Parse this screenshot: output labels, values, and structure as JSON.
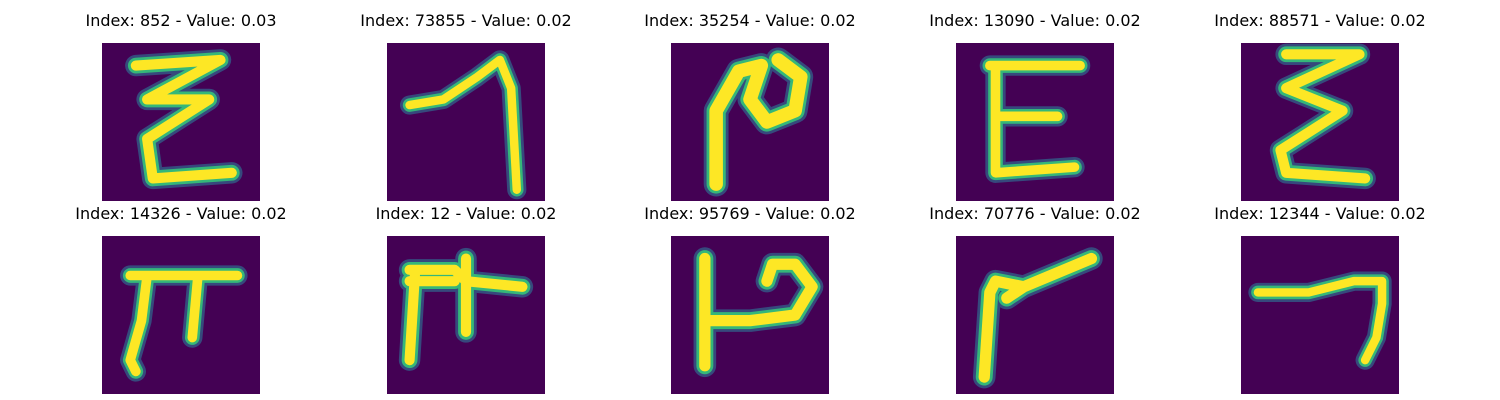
{
  "figure": {
    "colormap": "viridis",
    "background_color": "#440154",
    "stroke_color_core": "#fde725",
    "stroke_color_edge": "#35b779",
    "stroke_color_outer": "#31688e"
  },
  "samples": [
    {
      "title": "Index: 852 - Value: 0.03",
      "glyph": "zeta-like"
    },
    {
      "title": "Index: 73855 - Value: 0.02",
      "glyph": "seven-like"
    },
    {
      "title": "Index: 35254 - Value: 0.02",
      "glyph": "hooked-n"
    },
    {
      "title": "Index: 13090 - Value: 0.02",
      "glyph": "epsilon-e"
    },
    {
      "title": "Index: 88571 - Value: 0.02",
      "glyph": "sigma-e"
    },
    {
      "title": "Index: 14326 - Value: 0.02",
      "glyph": "pi-like"
    },
    {
      "title": "Index: 12 - Value: 0.02",
      "glyph": "pi-cross"
    },
    {
      "title": "Index: 95769 - Value: 0.02",
      "glyph": "reversed-p"
    },
    {
      "title": "Index: 70776 - Value: 0.02",
      "glyph": "check-v"
    },
    {
      "title": "Index: 12344 - Value: 0.02",
      "glyph": "seven-thin"
    }
  ]
}
